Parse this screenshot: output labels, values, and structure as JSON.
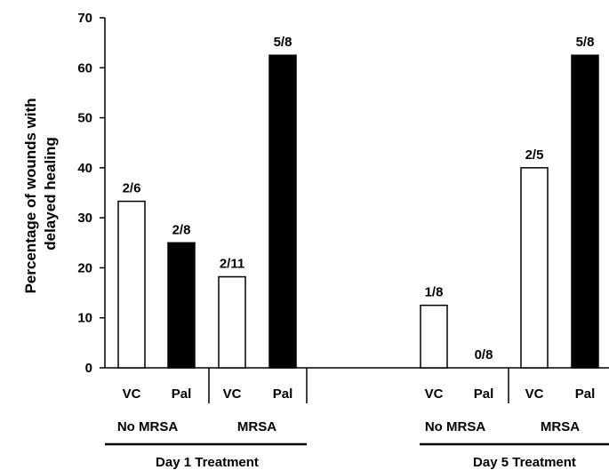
{
  "chart_data": {
    "type": "bar",
    "ylabel": "Percentage of wounds with delayed healing",
    "ylabel_lines": [
      "Percentage of wounds with",
      "delayed healing"
    ],
    "ylim": [
      0,
      70
    ],
    "yticks": [
      0,
      10,
      20,
      30,
      40,
      50,
      60,
      70
    ],
    "grid": false,
    "legend": "none",
    "colors": {
      "VC": "#ffffff",
      "Pal": "#000000",
      "outline": "#000000"
    },
    "bars": [
      {
        "group": "Day 1 Treatment",
        "condition": "No MRSA",
        "category": "VC",
        "value": 33.3,
        "label": "2/6"
      },
      {
        "group": "Day 1 Treatment",
        "condition": "No MRSA",
        "category": "Pal",
        "value": 25.0,
        "label": "2/8"
      },
      {
        "group": "Day 1 Treatment",
        "condition": "MRSA",
        "category": "VC",
        "value": 18.2,
        "label": "2/11"
      },
      {
        "group": "Day 1 Treatment",
        "condition": "MRSA",
        "category": "Pal",
        "value": 62.5,
        "label": "5/8"
      },
      {
        "group": "Day 5 Treatment",
        "condition": "No MRSA",
        "category": "VC",
        "value": 12.5,
        "label": "1/8"
      },
      {
        "group": "Day 5 Treatment",
        "condition": "No MRSA",
        "category": "Pal",
        "value": 0,
        "label": "0/8"
      },
      {
        "group": "Day 5 Treatment",
        "condition": "MRSA",
        "category": "VC",
        "value": 40.0,
        "label": "2/5"
      },
      {
        "group": "Day 5 Treatment",
        "condition": "MRSA",
        "category": "Pal",
        "value": 62.5,
        "label": "5/8"
      }
    ],
    "conditions": [
      "No MRSA",
      "MRSA",
      "No MRSA",
      "MRSA"
    ],
    "groups": [
      "Day 1 Treatment",
      "Day 5 Treatment"
    ]
  }
}
